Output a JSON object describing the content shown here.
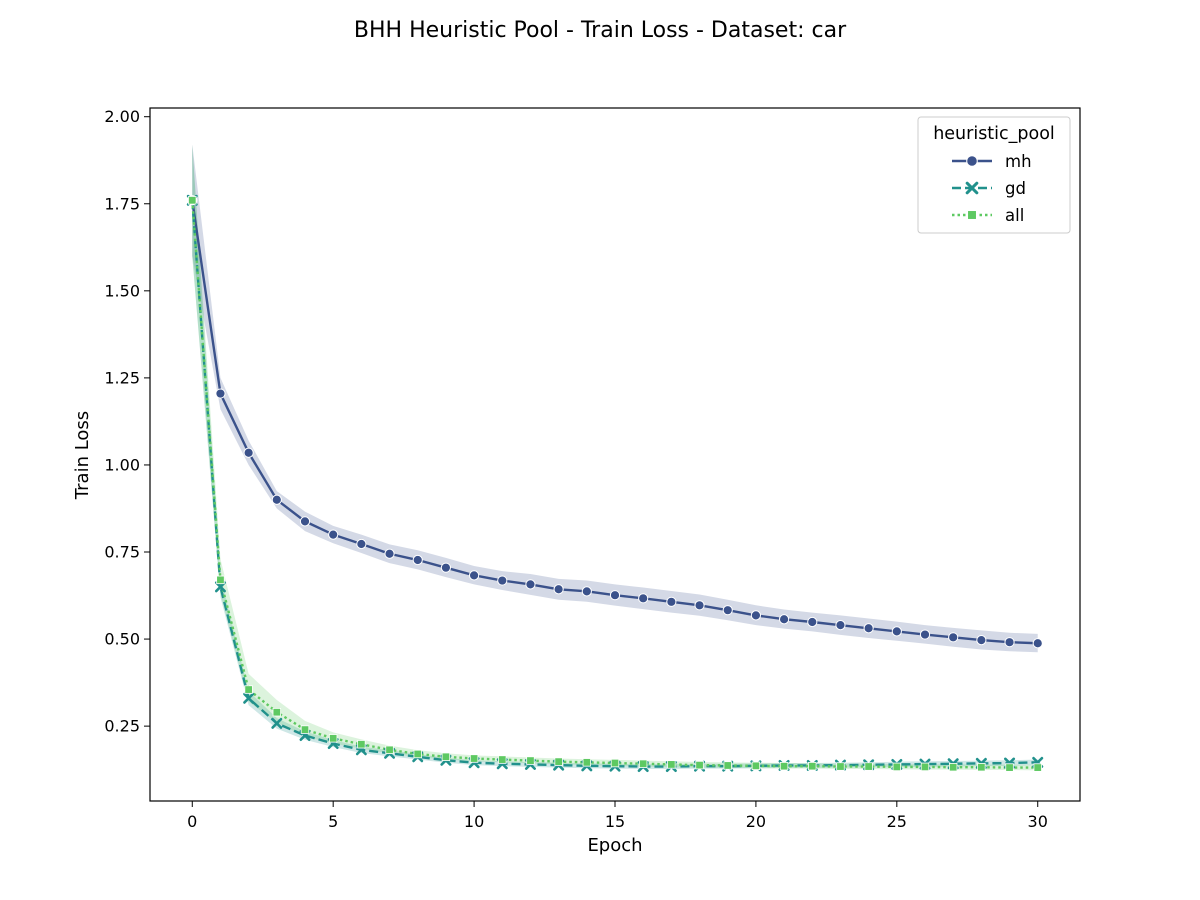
{
  "chart_data": {
    "type": "line",
    "title": "BHH Heuristic Pool - Train Loss - Dataset: car",
    "xlabel": "Epoch",
    "ylabel": "Train Loss",
    "xlim": [
      -1.5,
      31.5
    ],
    "ylim": [
      0.035,
      2.025
    ],
    "xticks": [
      0,
      5,
      10,
      15,
      20,
      25,
      30
    ],
    "xtick_labels": [
      "0",
      "5",
      "10",
      "15",
      "20",
      "25",
      "30"
    ],
    "yticks": [
      0.25,
      0.5,
      0.75,
      1.0,
      1.25,
      1.5,
      1.75,
      2.0
    ],
    "ytick_labels": [
      "0.25",
      "0.50",
      "0.75",
      "1.00",
      "1.25",
      "1.50",
      "1.75",
      "2.00"
    ],
    "grid": false,
    "legend": {
      "title": "heuristic_pool",
      "placement": "top-right"
    },
    "x": [
      0,
      1,
      2,
      3,
      4,
      5,
      6,
      7,
      8,
      9,
      10,
      11,
      12,
      13,
      14,
      15,
      16,
      17,
      18,
      19,
      20,
      21,
      22,
      23,
      24,
      25,
      26,
      27,
      28,
      29,
      30
    ],
    "series": [
      {
        "name": "mh",
        "color": "#3b528b",
        "marker": "circle",
        "linestyle": "solid",
        "values": [
          1.76,
          1.205,
          1.035,
          0.9,
          0.838,
          0.8,
          0.773,
          0.745,
          0.727,
          0.705,
          0.683,
          0.668,
          0.657,
          0.643,
          0.637,
          0.626,
          0.617,
          0.607,
          0.597,
          0.583,
          0.568,
          0.557,
          0.549,
          0.54,
          0.531,
          0.522,
          0.513,
          0.505,
          0.497,
          0.491,
          0.488
        ],
        "band_low": [
          1.6,
          1.16,
          1.0,
          0.875,
          0.81,
          0.775,
          0.747,
          0.718,
          0.7,
          0.678,
          0.657,
          0.641,
          0.627,
          0.613,
          0.607,
          0.596,
          0.586,
          0.576,
          0.567,
          0.554,
          0.54,
          0.53,
          0.522,
          0.512,
          0.503,
          0.495,
          0.487,
          0.478,
          0.47,
          0.465,
          0.462
        ],
        "band_high": [
          1.92,
          1.25,
          1.07,
          0.925,
          0.866,
          0.825,
          0.8,
          0.772,
          0.755,
          0.733,
          0.71,
          0.695,
          0.687,
          0.673,
          0.668,
          0.657,
          0.648,
          0.638,
          0.628,
          0.613,
          0.597,
          0.585,
          0.576,
          0.568,
          0.559,
          0.55,
          0.54,
          0.532,
          0.525,
          0.518,
          0.515
        ]
      },
      {
        "name": "gd",
        "color": "#21918c",
        "marker": "x",
        "linestyle": "dashed",
        "values": [
          1.76,
          0.65,
          0.33,
          0.258,
          0.223,
          0.2,
          0.182,
          0.172,
          0.162,
          0.152,
          0.145,
          0.142,
          0.14,
          0.138,
          0.136,
          0.135,
          0.134,
          0.134,
          0.135,
          0.135,
          0.136,
          0.137,
          0.137,
          0.138,
          0.139,
          0.14,
          0.141,
          0.142,
          0.143,
          0.144,
          0.146
        ],
        "band_low": [
          1.6,
          0.62,
          0.31,
          0.243,
          0.211,
          0.19,
          0.173,
          0.163,
          0.154,
          0.145,
          0.138,
          0.135,
          0.133,
          0.131,
          0.129,
          0.128,
          0.127,
          0.127,
          0.128,
          0.128,
          0.129,
          0.13,
          0.13,
          0.131,
          0.132,
          0.132,
          0.133,
          0.134,
          0.135,
          0.136,
          0.138
        ],
        "band_high": [
          1.92,
          0.68,
          0.35,
          0.273,
          0.235,
          0.21,
          0.191,
          0.181,
          0.17,
          0.159,
          0.152,
          0.149,
          0.147,
          0.145,
          0.143,
          0.142,
          0.141,
          0.141,
          0.142,
          0.142,
          0.143,
          0.144,
          0.144,
          0.145,
          0.146,
          0.148,
          0.149,
          0.15,
          0.151,
          0.152,
          0.154
        ]
      },
      {
        "name": "all",
        "color": "#5ec962",
        "marker": "square",
        "linestyle": "dotted",
        "values": [
          1.76,
          0.67,
          0.355,
          0.29,
          0.24,
          0.215,
          0.198,
          0.182,
          0.17,
          0.162,
          0.157,
          0.154,
          0.151,
          0.148,
          0.146,
          0.144,
          0.142,
          0.14,
          0.138,
          0.137,
          0.136,
          0.135,
          0.135,
          0.134,
          0.134,
          0.133,
          0.133,
          0.132,
          0.132,
          0.131,
          0.131
        ],
        "band_low": [
          1.6,
          0.63,
          0.32,
          0.26,
          0.22,
          0.2,
          0.185,
          0.172,
          0.161,
          0.154,
          0.149,
          0.146,
          0.143,
          0.14,
          0.138,
          0.136,
          0.134,
          0.132,
          0.131,
          0.13,
          0.129,
          0.128,
          0.128,
          0.127,
          0.127,
          0.126,
          0.125,
          0.125,
          0.124,
          0.124,
          0.123
        ],
        "band_high": [
          1.92,
          0.73,
          0.4,
          0.325,
          0.265,
          0.232,
          0.212,
          0.194,
          0.181,
          0.172,
          0.166,
          0.163,
          0.16,
          0.157,
          0.155,
          0.153,
          0.151,
          0.149,
          0.147,
          0.146,
          0.145,
          0.144,
          0.143,
          0.142,
          0.142,
          0.141,
          0.141,
          0.14,
          0.14,
          0.139,
          0.139
        ]
      }
    ]
  }
}
